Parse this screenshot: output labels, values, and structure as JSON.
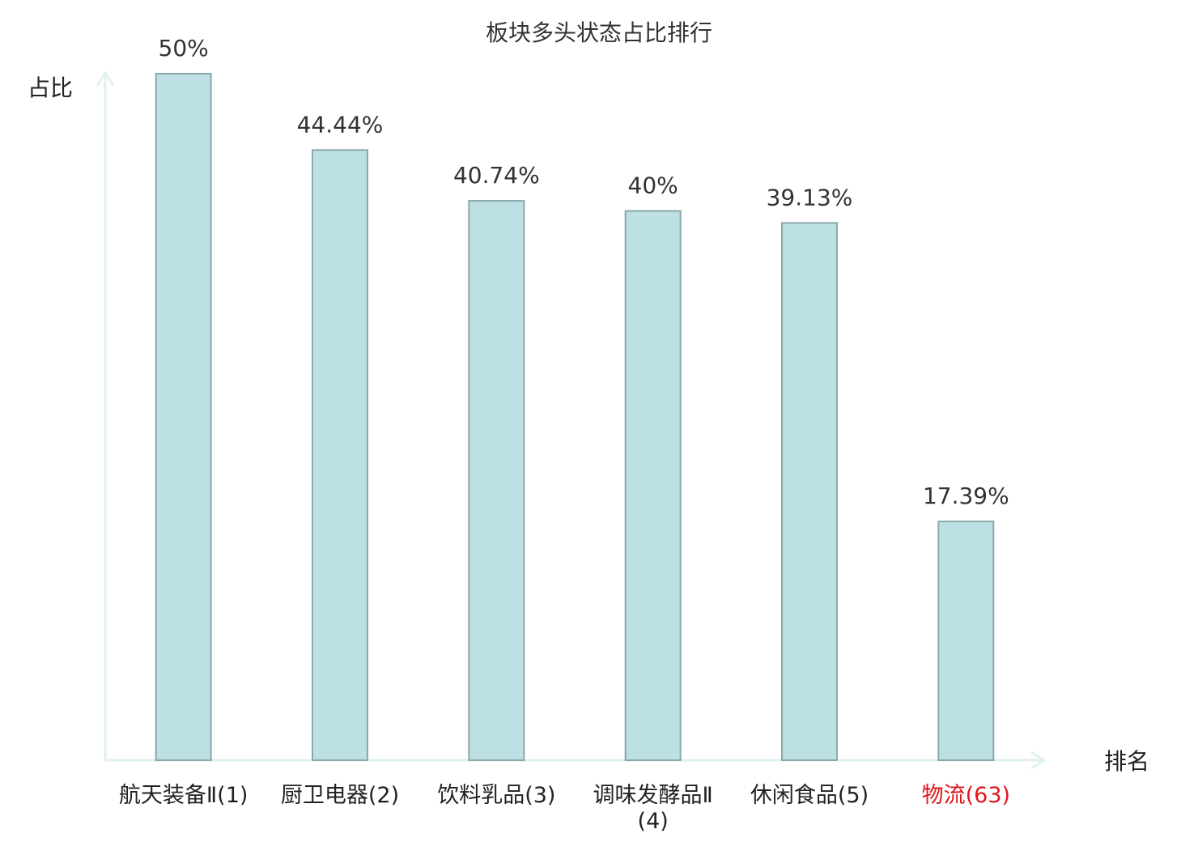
{
  "chart_data": {
    "type": "bar",
    "title": "板块多头状态占比排行",
    "y_label": "占比",
    "x_label": "排名",
    "categories": [
      "航天装备Ⅱ(1)",
      "厨卫电器(2)",
      "饮料乳品(3)",
      "调味发酵品Ⅱ(4)",
      "休闲食品(5)",
      "物流(63)"
    ],
    "values": [
      50,
      44.44,
      40.74,
      40,
      39.13,
      17.39
    ],
    "value_labels": [
      "50%",
      "44.44%",
      "40.74%",
      "40%",
      "39.13%",
      "17.39%"
    ],
    "color": "#bce0e3",
    "edge_color": "#8aa8ab",
    "axis_color": "#dff2ef",
    "label_colors": [
      "#222222",
      "#222222",
      "#222222",
      "#222222",
      "#222222",
      "#e0161b"
    ],
    "ylim": [
      0,
      50
    ]
  }
}
